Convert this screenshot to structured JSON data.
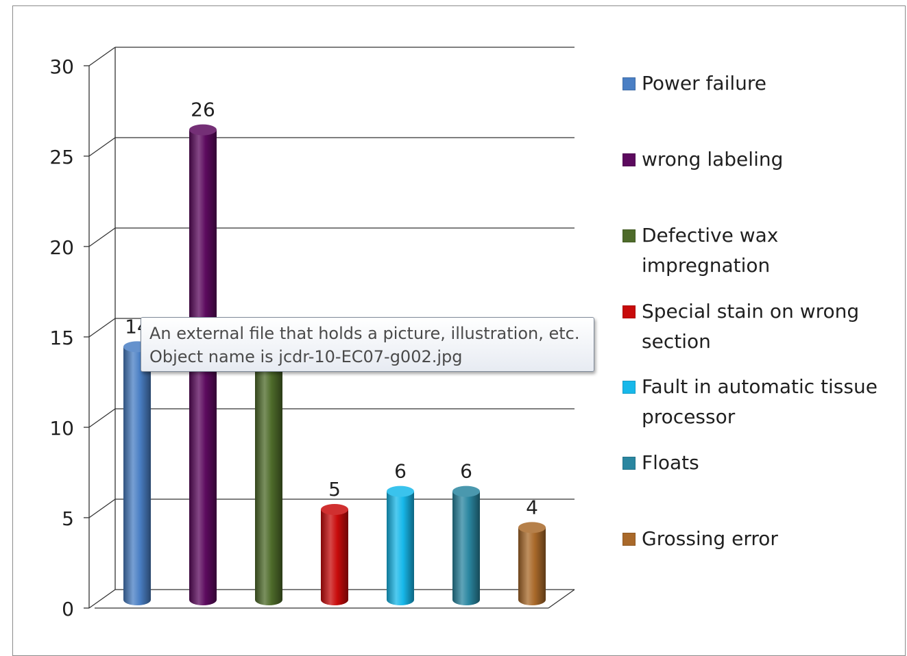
{
  "chart_data": {
    "type": "bar",
    "categories": [
      "Power failure",
      "wrong labeling",
      "Defective wax impregnation",
      "Special stain on wrong section",
      "Fault in automatic tissue processor",
      "Floats",
      "Grossing error"
    ],
    "values": [
      14,
      26,
      13,
      5,
      6,
      6,
      4
    ],
    "data_labels": [
      "14",
      "26",
      "",
      "5",
      "6",
      "6",
      "4"
    ],
    "colors": [
      "#4a7fc4",
      "#5c0a5e",
      "#4e6b2a",
      "#c80b0b",
      "#17b8ea",
      "#2a86a0",
      "#a9692a"
    ],
    "ylim": [
      0,
      30
    ],
    "yticks": [
      "0",
      "5",
      "10",
      "15",
      "20",
      "25",
      "30"
    ],
    "grid": true,
    "legend_position": "right",
    "title": "",
    "xlabel": "",
    "ylabel": ""
  },
  "tooltip": {
    "line1": "An external file that holds a picture, illustration, etc.",
    "line2": "Object name is jcdr-10-EC07-g002.jpg"
  }
}
